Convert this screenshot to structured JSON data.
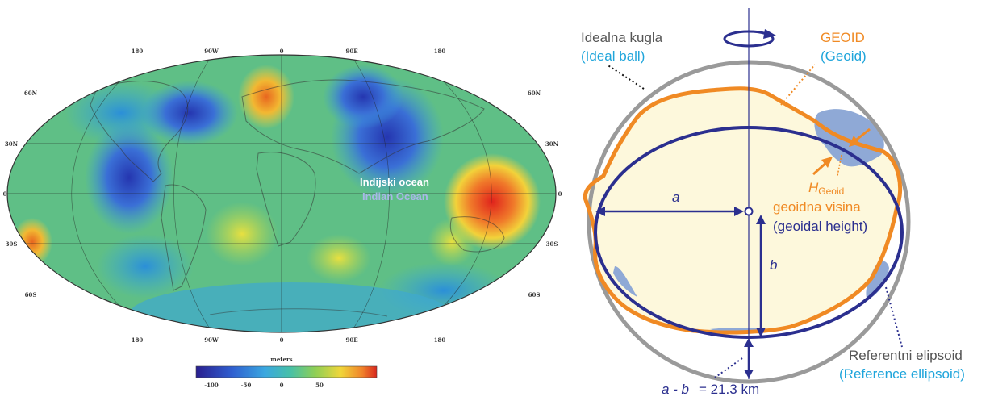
{
  "map": {
    "top_ticks": [
      "180",
      "90W",
      "0",
      "90E",
      "180"
    ],
    "bottom_ticks": [
      "180",
      "90W",
      "0",
      "90E",
      "180"
    ],
    "left_lats": [
      "60N",
      "30N",
      "0",
      "30S",
      "60S"
    ],
    "right_lats": [
      "60N",
      "30N",
      "0",
      "30S",
      "60S"
    ],
    "ocean_label": "Indijski  ocean",
    "ocean_label_en": "Indian Ocean",
    "colorbar_title": "meters",
    "colorbar_ticks": [
      "-100",
      "-50",
      "0",
      "50"
    ]
  },
  "diagram": {
    "ideal_ball": "Idealna kugla",
    "ideal_ball_en": "(Ideal ball)",
    "geoid": "GEOID",
    "geoid_en": "(Geoid)",
    "h_symbol": "H",
    "h_subscript": "Geoid",
    "geoidal_height": "geoidna visina",
    "geoidal_height_en": "(geoidal height)",
    "a_label": "a",
    "b_label": "b",
    "reference": "Referentni elipsoid",
    "reference_en": "(Reference ellipsoid)",
    "diff_prefix": "a - b",
    "diff_value": "=  21.3  km"
  },
  "colors": {
    "orange": "#f08a24",
    "navy": "#2b2f8f",
    "cyan": "#1fa5db",
    "gray": "#9a9a9a",
    "cream": "#fdf8dc",
    "bluefill": "#8fa9d6"
  }
}
